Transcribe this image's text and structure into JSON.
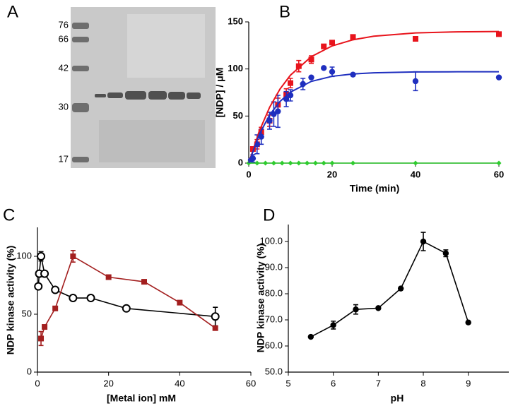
{
  "chart_data": [
    {
      "type": "gel",
      "panel": "A",
      "markers": [
        76,
        66,
        42,
        30,
        17
      ]
    },
    {
      "type": "scatter",
      "panel": "B",
      "x_label": "Time (min)",
      "y_label": "[NDP] / μM",
      "xlim": [
        0,
        60
      ],
      "xticks": [
        0,
        20,
        40,
        60
      ],
      "ylim": [
        0,
        150
      ],
      "yticks": [
        0,
        50,
        100,
        150
      ],
      "series": [
        {
          "color": "#e8141c",
          "mode": "markers",
          "marker": "square",
          "x": [
            1,
            2,
            3,
            5,
            7,
            9,
            10,
            12,
            15,
            18,
            20,
            25,
            40,
            60
          ],
          "values": [
            15,
            20,
            33,
            45,
            62,
            73,
            85,
            103,
            110,
            124,
            128,
            134,
            132,
            137
          ],
          "errors": [
            null,
            5,
            5,
            6,
            7,
            6,
            5,
            6,
            4,
            null,
            null,
            null,
            null,
            null
          ]
        },
        {
          "color": "#1f2fbf",
          "mode": "markers",
          "marker": "circle",
          "x": [
            0.5,
            1,
            2,
            3,
            5,
            6,
            7,
            9,
            10,
            13,
            15,
            18,
            20,
            25,
            40,
            60
          ],
          "values": [
            3,
            5,
            20,
            28,
            45,
            52,
            55,
            68,
            72,
            84,
            91,
            101,
            97,
            94,
            87,
            91
          ],
          "errors": [
            null,
            4,
            10,
            8,
            9,
            13,
            17,
            8,
            6,
            6,
            null,
            null,
            5,
            null,
            10,
            null
          ]
        },
        {
          "color": "#2ecc2e",
          "mode": "lines+markers",
          "marker": "diamond",
          "x": [
            0,
            2,
            4,
            6,
            8,
            10,
            12,
            14,
            16,
            18,
            20,
            25,
            40,
            60
          ],
          "values": [
            0,
            0,
            0,
            0,
            0,
            0,
            0,
            0,
            0,
            0,
            0,
            0,
            0,
            0
          ]
        },
        {
          "color": "#e8141c",
          "mode": "line",
          "x": [
            0,
            2.5,
            5,
            7.5,
            10,
            15,
            20,
            25,
            30,
            40,
            50,
            60
          ],
          "values": [
            0,
            33.7,
            59.2,
            78.7,
            93.4,
            113.1,
            124.5,
            131,
            134.8,
            138.3,
            139.4,
            139.8
          ]
        },
        {
          "color": "#1f2fbf",
          "mode": "line",
          "x": [
            0,
            2.5,
            5,
            7.5,
            10,
            15,
            20,
            25,
            30,
            40,
            50,
            60
          ],
          "values": [
            0,
            30.3,
            51.2,
            65.5,
            75.4,
            86.8,
            92.2,
            94.7,
            95.9,
            96.8,
            97,
            97
          ]
        }
      ]
    },
    {
      "type": "scatter",
      "panel": "C",
      "x_label": "[Metal ion] mM",
      "y_label": "NDP kinase activity (%)",
      "xlim": [
        0,
        60
      ],
      "xticks": [
        0,
        20,
        40,
        60
      ],
      "ylim": [
        0,
        125
      ],
      "yticks": [
        0,
        50,
        100
      ],
      "series": [
        {
          "color": "#000000",
          "mode": "lines+markers",
          "marker": "open-circle",
          "x": [
            0.25,
            0.5,
            1,
            2,
            5,
            10,
            15,
            25,
            50
          ],
          "values": [
            74,
            85,
            100,
            85,
            71,
            64,
            64,
            55,
            48
          ],
          "errors": [
            null,
            null,
            4,
            null,
            null,
            null,
            null,
            null,
            8
          ]
        },
        {
          "color": "#a31f1f",
          "mode": "lines+markers",
          "marker": "square",
          "x": [
            1,
            2,
            5,
            10,
            20,
            30,
            40,
            50
          ],
          "values": [
            29,
            39,
            55,
            100,
            82,
            78,
            60,
            38
          ],
          "errors": [
            6,
            null,
            null,
            5,
            null,
            null,
            null,
            null
          ]
        }
      ]
    },
    {
      "type": "scatter",
      "panel": "D",
      "x_label": "pH",
      "y_label": "NDP kinase activity (%)",
      "xlim": [
        5,
        9.9
      ],
      "xticks": [
        5,
        6,
        7,
        8,
        9
      ],
      "ylim": [
        50,
        106.5
      ],
      "yticks": [
        {
          "value": 50,
          "label": "50.0"
        },
        {
          "value": 60,
          "label": "60.0"
        },
        {
          "value": 70,
          "label": "70.0"
        },
        {
          "value": 80,
          "label": "80.0"
        },
        {
          "value": 90,
          "label": "90.0"
        },
        {
          "value": 100,
          "label": "100.0"
        }
      ],
      "series": [
        {
          "color": "#000000",
          "mode": "lines+markers",
          "marker": "circle",
          "x": [
            5.5,
            6,
            6.5,
            7,
            7.5,
            8,
            8.5,
            9
          ],
          "values": [
            63.5,
            68,
            74,
            74.5,
            82,
            100,
            95.5,
            69
          ],
          "errors": [
            null,
            1.5,
            1.8,
            null,
            null,
            3.5,
            1.3,
            null
          ]
        }
      ]
    }
  ]
}
